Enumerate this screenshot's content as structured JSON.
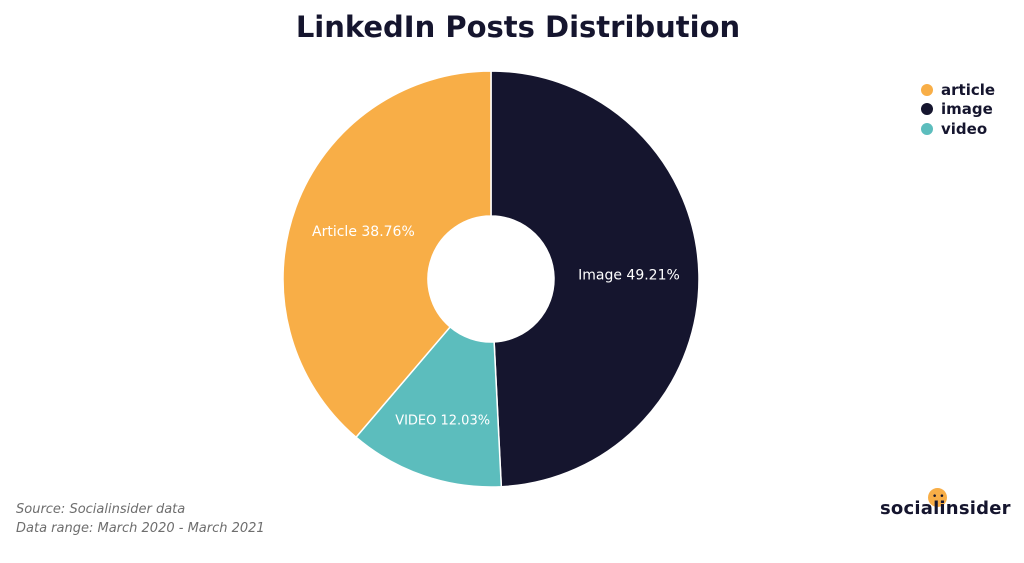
{
  "title": "LinkedIn Posts Distribution",
  "chart_data": {
    "type": "pie",
    "title": "LinkedIn Posts Distribution",
    "donut": true,
    "categories": [
      "article",
      "image",
      "video"
    ],
    "values": [
      38.76,
      49.21,
      12.03
    ],
    "slice_labels": [
      "Article 38.76%",
      "Image 49.21%",
      "VIDEO 12.03%"
    ],
    "colors": [
      "#F8AE47",
      "#15152E",
      "#5CBDBD"
    ],
    "legend_position": "top-right"
  },
  "legend": [
    {
      "label": "article",
      "color": "#F8AE47"
    },
    {
      "label": "image",
      "color": "#15152E"
    },
    {
      "label": "video",
      "color": "#5CBDBD"
    }
  ],
  "source": {
    "line1": "Source: Socialinsider data",
    "line2": "Data range:  March 2020 - March 2021"
  },
  "brand": {
    "name": "socialinsider",
    "accent": "#F8AE47"
  }
}
